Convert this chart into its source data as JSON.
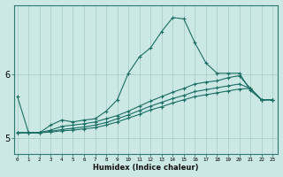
{
  "xlabel": "Humidex (Indice chaleur)",
  "bg_color": "#cce8e4",
  "grid_color": "#aacfcb",
  "line_color": "#1a6e65",
  "x_ticks": [
    0,
    1,
    2,
    3,
    4,
    5,
    6,
    7,
    8,
    9,
    10,
    11,
    12,
    13,
    14,
    15,
    16,
    17,
    18,
    19,
    20,
    21,
    22,
    23
  ],
  "y_ticks": [
    5,
    6
  ],
  "ylim": [
    4.75,
    7.1
  ],
  "xlim": [
    -0.3,
    23.5
  ],
  "series": [
    {
      "x": [
        0,
        1,
        2,
        3,
        4,
        5,
        6,
        7,
        8,
        9,
        10,
        11,
        12,
        13,
        14,
        15,
        16,
        17,
        18,
        19,
        20,
        21,
        22,
        23
      ],
      "y": [
        5.65,
        5.08,
        5.08,
        5.2,
        5.28,
        5.25,
        5.28,
        5.3,
        5.42,
        5.6,
        6.02,
        6.28,
        6.42,
        6.68,
        6.9,
        6.88,
        6.5,
        6.18,
        6.02,
        6.02,
        6.02,
        5.75,
        5.6,
        5.6
      ]
    },
    {
      "x": [
        0,
        1,
        2,
        3,
        4,
        5,
        6,
        7,
        8,
        9,
        10,
        11,
        12,
        13,
        14,
        15,
        16,
        17,
        18,
        19,
        20,
        21,
        22,
        23
      ],
      "y": [
        5.08,
        5.08,
        5.08,
        5.12,
        5.18,
        5.2,
        5.22,
        5.25,
        5.3,
        5.35,
        5.42,
        5.5,
        5.58,
        5.65,
        5.72,
        5.78,
        5.85,
        5.88,
        5.9,
        5.95,
        5.98,
        5.78,
        5.6,
        5.6
      ]
    },
    {
      "x": [
        0,
        1,
        2,
        3,
        4,
        5,
        6,
        7,
        8,
        9,
        10,
        11,
        12,
        13,
        14,
        15,
        16,
        17,
        18,
        19,
        20,
        21,
        22,
        23
      ],
      "y": [
        5.08,
        5.08,
        5.08,
        5.1,
        5.13,
        5.15,
        5.17,
        5.2,
        5.24,
        5.3,
        5.36,
        5.43,
        5.5,
        5.56,
        5.62,
        5.67,
        5.73,
        5.76,
        5.79,
        5.82,
        5.85,
        5.78,
        5.6,
        5.6
      ]
    },
    {
      "x": [
        0,
        1,
        2,
        3,
        4,
        5,
        6,
        7,
        8,
        9,
        10,
        11,
        12,
        13,
        14,
        15,
        16,
        17,
        18,
        19,
        20,
        21,
        22,
        23
      ],
      "y": [
        5.08,
        5.08,
        5.08,
        5.09,
        5.11,
        5.12,
        5.14,
        5.16,
        5.2,
        5.25,
        5.31,
        5.37,
        5.44,
        5.49,
        5.55,
        5.6,
        5.65,
        5.68,
        5.71,
        5.74,
        5.77,
        5.78,
        5.6,
        5.6
      ]
    }
  ]
}
